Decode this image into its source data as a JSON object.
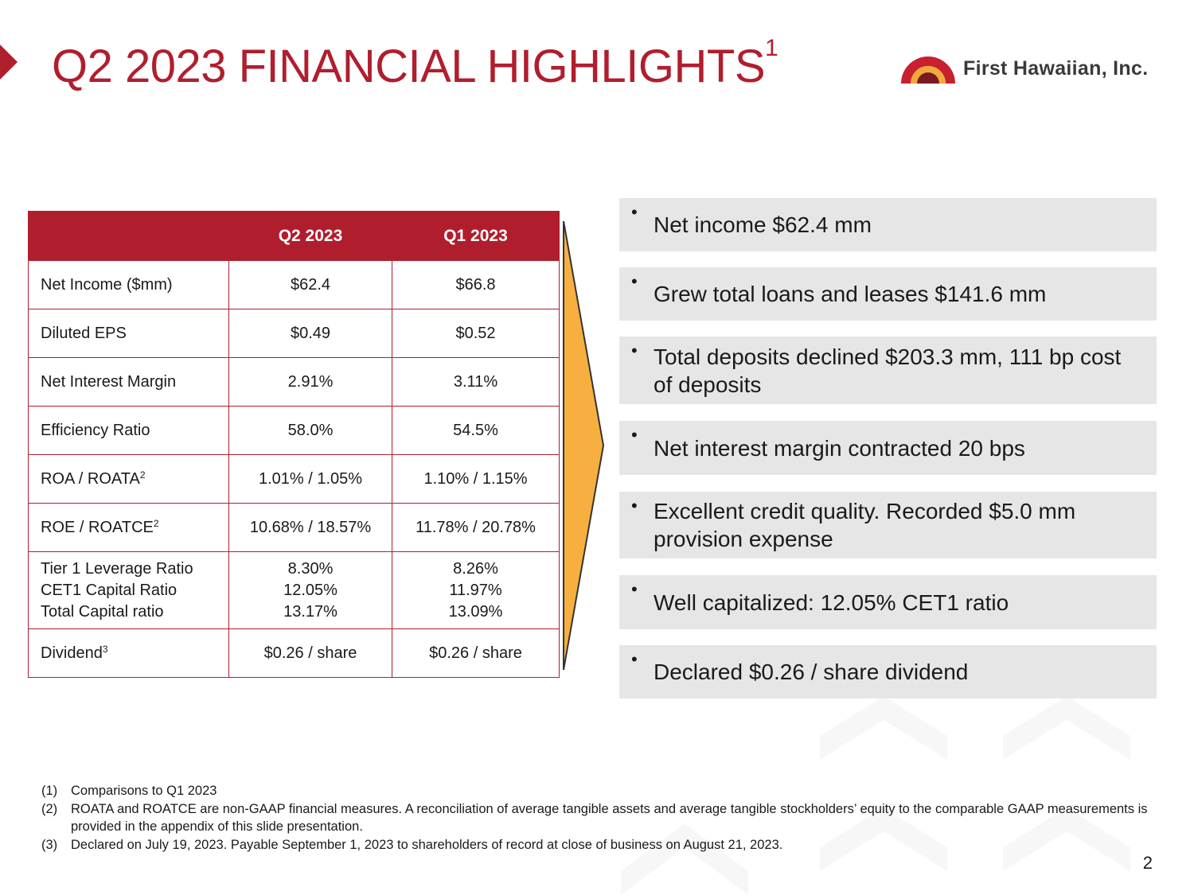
{
  "header": {
    "title": "Q2 2023 FINANCIAL HIGHLIGHTS",
    "title_superscript": "1",
    "logo_text": "First Hawaiian, Inc.",
    "accent_color": "#b01e2d",
    "logo_icon": "sun-arc-logo-icon"
  },
  "table": {
    "columns": [
      "",
      "Q2 2023",
      "Q1 2023"
    ],
    "rows": [
      {
        "label": "Net Income ($mm)",
        "sup": "",
        "q2": "$62.4",
        "q1": "$66.8"
      },
      {
        "label": "Diluted EPS",
        "sup": "",
        "q2": "$0.49",
        "q1": "$0.52"
      },
      {
        "label": "Net Interest Margin",
        "sup": "",
        "q2": "2.91%",
        "q1": "3.11%"
      },
      {
        "label": "Efficiency Ratio",
        "sup": "",
        "q2": "58.0%",
        "q1": "54.5%"
      },
      {
        "label": "ROA / ROATA",
        "sup": "2",
        "q2": "1.01% / 1.05%",
        "q1": "1.10% / 1.15%"
      },
      {
        "label": "ROE / ROATCE",
        "sup": "2",
        "q2": "10.68% / 18.57%",
        "q1": "11.78% / 20.78%"
      }
    ],
    "capital_row": {
      "labels": [
        "Tier 1 Leverage Ratio",
        "CET1 Capital Ratio",
        "Total Capital ratio"
      ],
      "q2": [
        "8.30%",
        "12.05%",
        "13.17%"
      ],
      "q1": [
        "8.26%",
        "11.97%",
        "13.09%"
      ]
    },
    "dividend_row": {
      "label": "Dividend",
      "sup": "3",
      "q2": "$0.26 / share",
      "q1": "$0.26 / share"
    }
  },
  "bullets": [
    "Net income $62.4 mm",
    "Grew total loans and leases $141.6 mm",
    "Total deposits declined $203.3 mm, 111 bp cost of deposits",
    "Net interest margin contracted 20 bps",
    "Excellent credit quality.  Recorded $5.0 mm provision expense",
    "Well capitalized:  12.05% CET1 ratio",
    "Declared $0.26 / share dividend"
  ],
  "footnotes": [
    {
      "num": "(1)",
      "text": "Comparisons to Q1 2023"
    },
    {
      "num": "(2)",
      "text": "ROATA and ROATCE are non-GAAP financial measures.  A reconciliation of average tangible assets and average tangible stockholders’ equity to the comparable GAAP measurements is provided in the appendix of this slide presentation."
    },
    {
      "num": "(3)",
      "text": "Declared on July 19, 2023.  Payable September 1, 2023 to shareholders of record at close of business on August 21, 2023."
    }
  ],
  "page_number": "2"
}
